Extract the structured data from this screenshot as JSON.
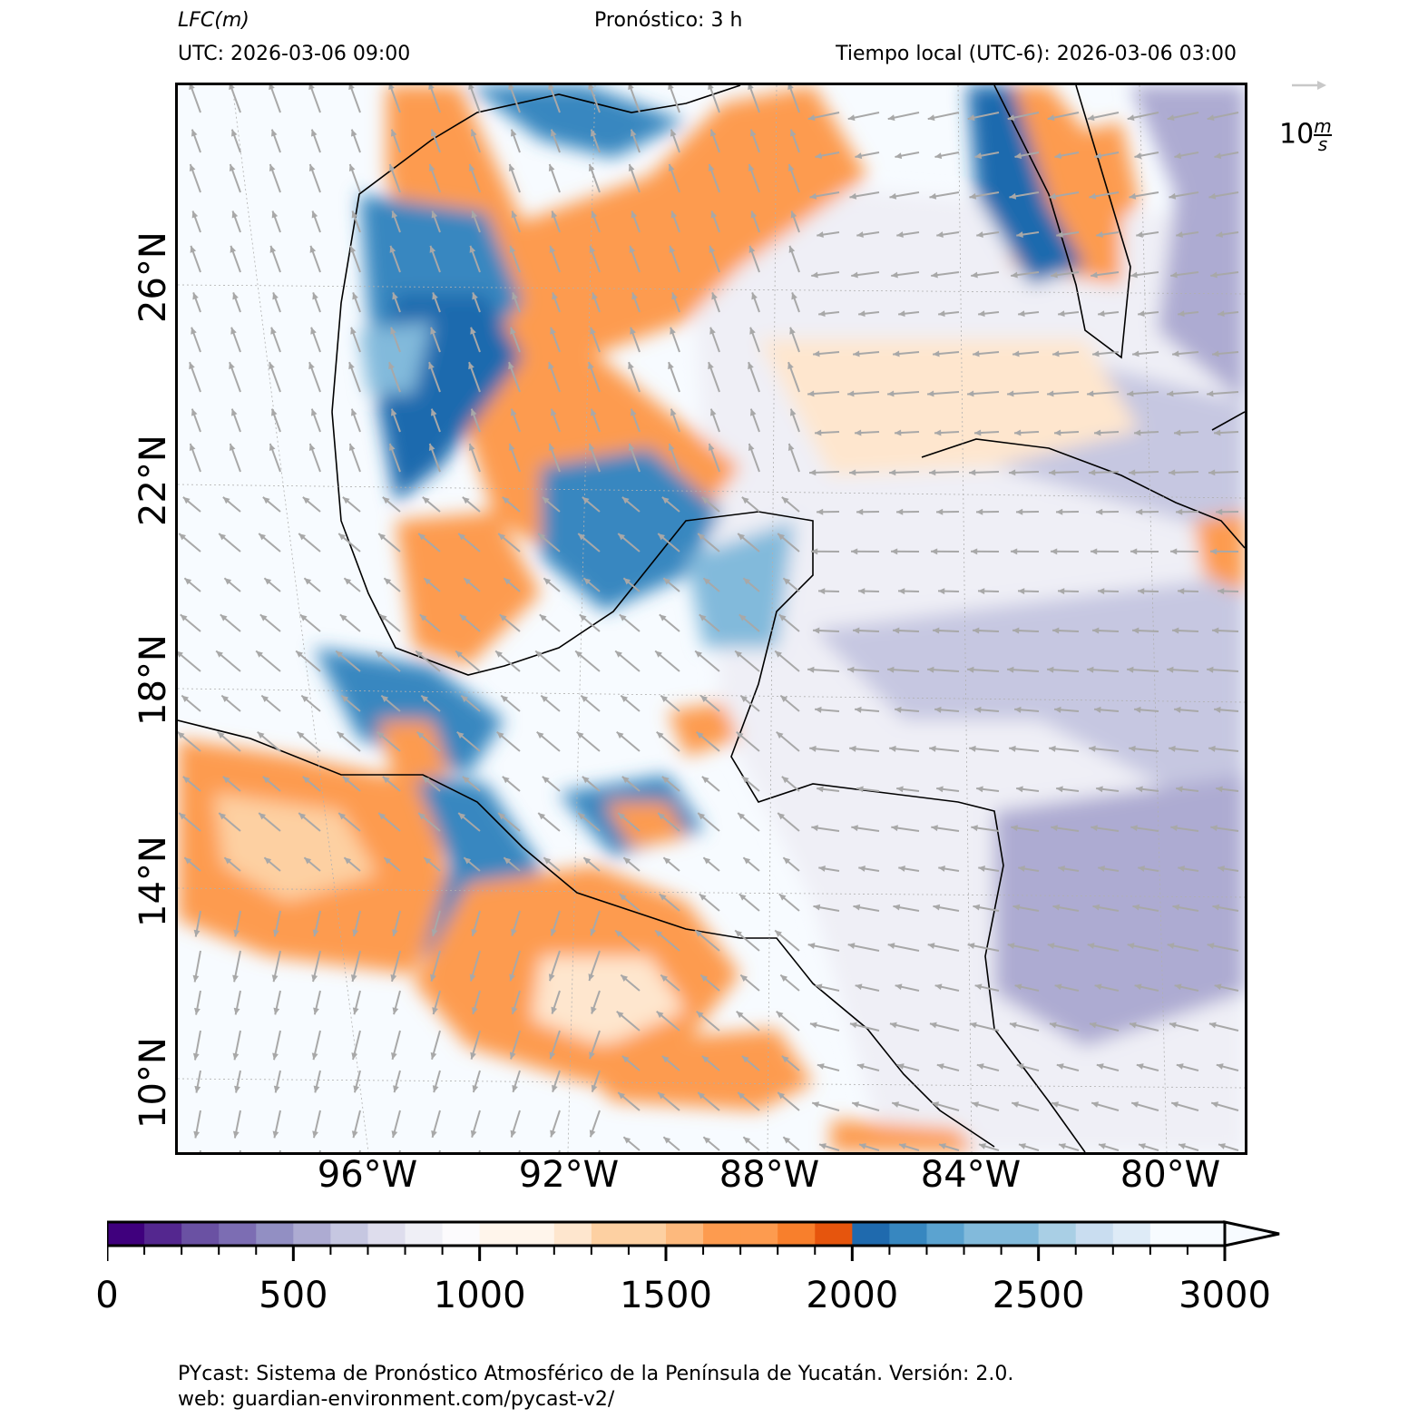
{
  "header": {
    "variable": "LFC",
    "unit": "(m)",
    "forecast": "Pronóstico: 3 h",
    "utc": "UTC:  2026-03-06 09:00",
    "local": "Tiempo local (UTC-6): 2026-03-06 03:00"
  },
  "wind_key": {
    "value": "10",
    "unit_num": "m",
    "unit_den": "s"
  },
  "axes": {
    "lat_labels": [
      "26°N",
      "22°N",
      "18°N",
      "14°N",
      "10°N"
    ],
    "lon_labels": [
      "96°W",
      "92°W",
      "88°W",
      "84°W",
      "80°W"
    ]
  },
  "colorbar": {
    "min": 0,
    "max": 3000,
    "step": 100,
    "extend": "max",
    "tick_labels": [
      "0",
      "500",
      "1000",
      "1500",
      "2000",
      "2500",
      "3000"
    ],
    "colors": [
      "#3f007d",
      "#54278f",
      "#6a51a3",
      "#7c6db3",
      "#928fc3",
      "#adabd2",
      "#c6c7e1",
      "#dedded",
      "#efeff6",
      "#fcfbfd",
      "#fff5eb",
      "#fff5eb",
      "#fee6ce",
      "#fdd0a2",
      "#fdd0a2",
      "#fdb97d",
      "#fd9b4f",
      "#fd9b4f",
      "#f87f2c",
      "#e6550d",
      "#1f6aae",
      "#3787c0",
      "#5ba3d0",
      "#82badb",
      "#82badb",
      "#a9cfe5",
      "#c9ddf0",
      "#deebf7",
      "#f7fbff",
      "#f7fbff"
    ]
  },
  "footer": {
    "line1": "PYcast: Sistema de Pronóstico Atmosférico de la Península de Yucatán. Versión: 2.0.",
    "line2": "web: guardian-environment.com/pycast-v2/"
  }
}
